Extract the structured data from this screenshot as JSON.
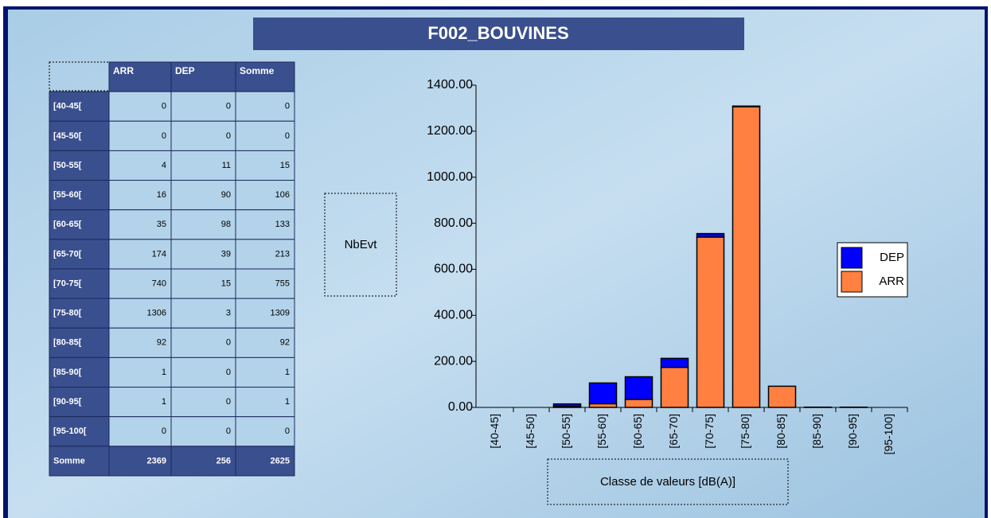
{
  "title": "F002_BOUVINES",
  "table": {
    "columns": [
      "ARR",
      "DEP",
      "Somme"
    ],
    "rows": [
      [
        "[40-45[",
        0,
        0,
        0
      ],
      [
        "[45-50[",
        0,
        0,
        0
      ],
      [
        "[50-55[",
        4,
        11,
        15
      ],
      [
        "[55-60[",
        16,
        90,
        106
      ],
      [
        "[60-65[",
        35,
        98,
        133
      ],
      [
        "[65-70[",
        174,
        39,
        213
      ],
      [
        "[70-75[",
        740,
        15,
        755
      ],
      [
        "[75-80[",
        1306,
        3,
        1309
      ],
      [
        "[80-85[",
        92,
        0,
        92
      ],
      [
        "[85-90[",
        1,
        0,
        1
      ],
      [
        "[90-95[",
        1,
        0,
        1
      ],
      [
        "[95-100[",
        0,
        0,
        0
      ],
      [
        "Somme",
        2369,
        256,
        2625
      ]
    ]
  },
  "chart_data": {
    "type": "stacked_bar",
    "ylabel": "NbEvt",
    "xlabel": "Classe de valeurs [dB(A)]",
    "categories": [
      "[40-45]",
      "[45-50]",
      "[50-55]",
      "[55-60]",
      "[60-65]",
      "[65-70]",
      "[70-75]",
      "[75-80]",
      "[80-85]",
      "[85-90]",
      "[90-95]",
      "[95-100]"
    ],
    "series": [
      {
        "name": "ARR",
        "color": "#ff8040",
        "values": [
          0,
          0,
          4,
          16,
          35,
          174,
          740,
          1306,
          92,
          1,
          1,
          0
        ]
      },
      {
        "name": "DEP",
        "color": "#0000ff",
        "values": [
          0,
          0,
          11,
          90,
          98,
          39,
          15,
          3,
          0,
          0,
          0,
          0
        ]
      }
    ],
    "ylim": [
      0,
      1400
    ],
    "yticks": [
      {
        "value": 0,
        "label": "0.00"
      },
      {
        "value": 200,
        "label": "200.00"
      },
      {
        "value": 400,
        "label": "400.00"
      },
      {
        "value": 600,
        "label": "600.00"
      },
      {
        "value": 800,
        "label": "800.00"
      },
      {
        "value": 1000,
        "label": "1000.00"
      },
      {
        "value": 1200,
        "label": "1200.00"
      },
      {
        "value": 1400,
        "label": "1400.00"
      }
    ],
    "legend": "right"
  }
}
